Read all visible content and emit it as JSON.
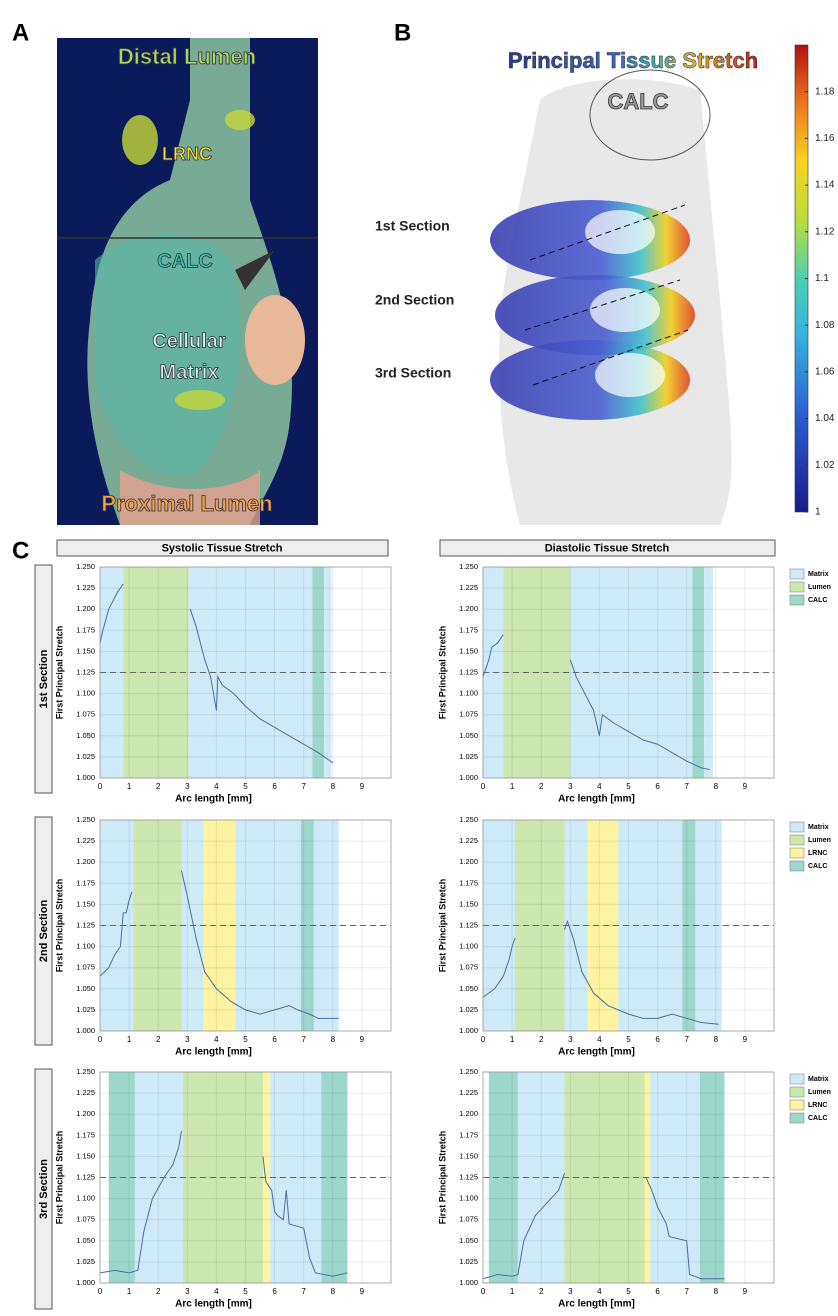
{
  "panel_labels": [
    "A",
    "B",
    "C"
  ],
  "panel_a": {
    "labels": [
      "Distal Lumen",
      "LRNC",
      "CALC",
      "Cellular",
      "Matrix",
      "Proximal Lumen"
    ]
  },
  "panel_b": {
    "title": "Principal Tissue Stretch",
    "calc_label": "CALC",
    "sections": [
      "1st Section",
      "2nd Section",
      "3rd Section"
    ],
    "colorbar": {
      "ylim": [
        1,
        1.2
      ],
      "yticks": [
        1,
        1.02,
        1.04,
        1.06,
        1.08,
        1.1,
        1.12,
        1.14,
        1.16,
        1.18
      ]
    }
  },
  "column_titles": [
    "Systolic Tissue Stretch",
    "Diastolic Tissue Stretch"
  ],
  "row_titles": [
    "1st Section",
    "2nd Section",
    "3rd Section"
  ],
  "chart_data": [
    {
      "type": "line",
      "xlabel": "Arc length [mm]",
      "ylabel": "First Principal Stretch",
      "xlim": [
        0,
        10
      ],
      "ylim": [
        1,
        1.25
      ],
      "xticks": [
        0,
        1,
        2,
        3,
        4,
        5,
        6,
        7,
        8,
        9
      ],
      "yticks": [
        {
          "value": 1,
          "label": "1.000"
        },
        1.025,
        {
          "value": 1.05,
          "label": "1.050"
        },
        1.075,
        {
          "value": 1.1,
          "label": "1.100"
        },
        1.125,
        {
          "value": 1.15,
          "label": "1.150"
        },
        1.175,
        {
          "value": 1.2,
          "label": "1.200"
        },
        1.225,
        {
          "value": 1.25,
          "label": "1.250"
        }
      ],
      "grid": true,
      "reference_line": 1.125,
      "color": "#4a6fa5",
      "regions": [
        {
          "start": 0,
          "end": 0.8,
          "color": "#cfeaf7"
        },
        {
          "start": 0.8,
          "end": 3.05,
          "color": "#cde7b0"
        },
        {
          "start": 3.05,
          "end": 7.3,
          "color": "#cfeaf7"
        },
        {
          "start": 7.3,
          "end": 7.7,
          "color": "#9dd7cc"
        },
        {
          "start": 7.7,
          "end": 7.95,
          "color": "#cfeaf7"
        }
      ],
      "x": [
        0,
        0.1,
        0.3,
        0.6,
        0.8,
        null,
        3.1,
        3.3,
        3.6,
        3.8,
        3.95,
        4.0,
        4.05,
        4.2,
        4.6,
        5,
        5.5,
        6,
        6.5,
        7,
        7.5,
        8
      ],
      "values": [
        1.16,
        1.175,
        1.2,
        1.22,
        1.23,
        null,
        1.2,
        1.18,
        1.14,
        1.12,
        1.09,
        1.08,
        1.12,
        1.11,
        1.1,
        1.085,
        1.07,
        1.06,
        1.05,
        1.04,
        1.03,
        1.018
      ]
    },
    {
      "type": "line",
      "xlabel": "Arc length [mm]",
      "ylabel": "First Principal Stretch",
      "xlim": [
        0,
        10
      ],
      "ylim": [
        1,
        1.25
      ],
      "xticks": [
        0,
        1,
        2,
        3,
        4,
        5,
        6,
        7,
        8,
        9
      ],
      "yticks": [
        {
          "value": 1,
          "label": "1.000"
        },
        1.025,
        {
          "value": 1.05,
          "label": "1.050"
        },
        1.075,
        {
          "value": 1.1,
          "label": "1.100"
        },
        1.125,
        {
          "value": 1.15,
          "label": "1.150"
        },
        1.175,
        {
          "value": 1.2,
          "label": "1.200"
        },
        1.225,
        {
          "value": 1.25,
          "label": "1.250"
        }
      ],
      "grid": true,
      "reference_line": 1.125,
      "color": "#4a6fa5",
      "regions": [
        {
          "start": 0,
          "end": 0.7,
          "color": "#cfeaf7"
        },
        {
          "start": 0.7,
          "end": 3.0,
          "color": "#cde7b0"
        },
        {
          "start": 3.0,
          "end": 7.2,
          "color": "#cfeaf7"
        },
        {
          "start": 7.2,
          "end": 7.6,
          "color": "#9dd7cc"
        },
        {
          "start": 7.6,
          "end": 7.9,
          "color": "#cfeaf7"
        }
      ],
      "legend": [
        {
          "name": "Matrix",
          "color": "#cfeaf7"
        },
        {
          "name": "Lumen",
          "color": "#cde7b0"
        },
        {
          "name": "CALC",
          "color": "#9dd7cc"
        }
      ],
      "x": [
        0,
        0.2,
        0.3,
        0.5,
        0.7,
        null,
        3.0,
        3.2,
        3.5,
        3.8,
        4.0,
        4.1,
        4.5,
        5,
        5.5,
        6,
        6.5,
        7,
        7.5,
        7.8
      ],
      "values": [
        1.12,
        1.14,
        1.155,
        1.16,
        1.17,
        null,
        1.14,
        1.12,
        1.1,
        1.08,
        1.05,
        1.075,
        1.065,
        1.055,
        1.045,
        1.04,
        1.03,
        1.02,
        1.012,
        1.01
      ]
    },
    {
      "type": "line",
      "xlabel": "Arc length [mm]",
      "ylabel": "First Principal Stretch",
      "xlim": [
        0,
        10
      ],
      "ylim": [
        1,
        1.25
      ],
      "xticks": [
        0,
        1,
        2,
        3,
        4,
        5,
        6,
        7,
        8,
        9
      ],
      "yticks": [
        {
          "value": 1,
          "label": "1.000"
        },
        1.025,
        {
          "value": 1.05,
          "label": "1.050"
        },
        1.075,
        {
          "value": 1.1,
          "label": "1.100"
        },
        1.125,
        {
          "value": 1.15,
          "label": "1.150"
        },
        1.175,
        {
          "value": 1.2,
          "label": "1.200"
        },
        1.225,
        {
          "value": 1.25,
          "label": "1.250"
        }
      ],
      "grid": true,
      "reference_line": 1.125,
      "color": "#4a6fa5",
      "regions": [
        {
          "start": 0,
          "end": 1.15,
          "color": "#cfeaf7"
        },
        {
          "start": 1.15,
          "end": 2.8,
          "color": "#cde7b0"
        },
        {
          "start": 2.8,
          "end": 3.55,
          "color": "#cfeaf7"
        },
        {
          "start": 3.55,
          "end": 4.65,
          "color": "#fbf3a0"
        },
        {
          "start": 4.65,
          "end": 6.9,
          "color": "#cfeaf7"
        },
        {
          "start": 6.9,
          "end": 7.35,
          "color": "#9dd7cc"
        },
        {
          "start": 7.35,
          "end": 8.2,
          "color": "#cfeaf7"
        }
      ],
      "x": [
        0,
        0.3,
        0.5,
        0.7,
        0.8,
        0.9,
        1.0,
        1.1,
        null,
        2.8,
        3.0,
        3.3,
        3.6,
        4,
        4.5,
        5,
        5.5,
        6,
        6.5,
        6.8,
        7.2,
        7.5,
        8.2
      ],
      "values": [
        1.065,
        1.075,
        1.09,
        1.1,
        1.14,
        1.14,
        1.155,
        1.165,
        null,
        1.19,
        1.16,
        1.11,
        1.07,
        1.05,
        1.035,
        1.025,
        1.02,
        1.025,
        1.03,
        1.025,
        1.02,
        1.015,
        1.015
      ]
    },
    {
      "type": "line",
      "xlabel": "Arc length [mm]",
      "ylabel": "First Principal Stretch",
      "xlim": [
        0,
        10
      ],
      "ylim": [
        1,
        1.25
      ],
      "xticks": [
        0,
        1,
        2,
        3,
        4,
        5,
        6,
        7,
        8,
        9
      ],
      "yticks": [
        {
          "value": 1,
          "label": "1.000"
        },
        1.025,
        {
          "value": 1.05,
          "label": "1.050"
        },
        1.075,
        {
          "value": 1.1,
          "label": "1.100"
        },
        1.125,
        {
          "value": 1.15,
          "label": "1.150"
        },
        1.175,
        {
          "value": 1.2,
          "label": "1.200"
        },
        1.225,
        {
          "value": 1.25,
          "label": "1.250"
        }
      ],
      "grid": true,
      "reference_line": 1.125,
      "color": "#4a6fa5",
      "regions": [
        {
          "start": 0,
          "end": 1.1,
          "color": "#cfeaf7"
        },
        {
          "start": 1.1,
          "end": 2.8,
          "color": "#cde7b0"
        },
        {
          "start": 2.8,
          "end": 3.6,
          "color": "#cfeaf7"
        },
        {
          "start": 3.6,
          "end": 4.65,
          "color": "#fbf3a0"
        },
        {
          "start": 4.65,
          "end": 6.85,
          "color": "#cfeaf7"
        },
        {
          "start": 6.85,
          "end": 7.3,
          "color": "#9dd7cc"
        },
        {
          "start": 7.3,
          "end": 8.2,
          "color": "#cfeaf7"
        }
      ],
      "legend": [
        {
          "name": "Matrix",
          "color": "#cfeaf7"
        },
        {
          "name": "Lumen",
          "color": "#cde7b0"
        },
        {
          "name": "LRNC",
          "color": "#fbf3a0"
        },
        {
          "name": "CALC",
          "color": "#9dd7cc"
        }
      ],
      "x": [
        0,
        0.4,
        0.7,
        0.9,
        1.0,
        1.1,
        null,
        2.8,
        2.9,
        3.1,
        3.4,
        3.8,
        4.3,
        5,
        5.5,
        6,
        6.5,
        7,
        7.5,
        8.1
      ],
      "values": [
        1.04,
        1.05,
        1.065,
        1.085,
        1.1,
        1.11,
        null,
        1.12,
        1.13,
        1.11,
        1.07,
        1.045,
        1.03,
        1.02,
        1.015,
        1.015,
        1.02,
        1.015,
        1.01,
        1.008
      ]
    },
    {
      "type": "line",
      "xlabel": "Arc length [mm]",
      "ylabel": "First Principal Stretch",
      "xlim": [
        0,
        10
      ],
      "ylim": [
        1,
        1.25
      ],
      "xticks": [
        0,
        1,
        2,
        3,
        4,
        5,
        6,
        7,
        8,
        9
      ],
      "yticks": [
        {
          "value": 1,
          "label": "1.000"
        },
        1.025,
        {
          "value": 1.05,
          "label": "1.050"
        },
        1.075,
        {
          "value": 1.1,
          "label": "1.100"
        },
        1.125,
        {
          "value": 1.15,
          "label": "1.150"
        },
        1.175,
        {
          "value": 1.2,
          "label": "1.200"
        },
        1.225,
        {
          "value": 1.25,
          "label": "1.250"
        }
      ],
      "grid": true,
      "reference_line": 1.125,
      "color": "#4a6fa5",
      "regions": [
        {
          "start": 0.3,
          "end": 1.2,
          "color": "#9dd7cc"
        },
        {
          "start": 1.2,
          "end": 2.85,
          "color": "#cfeaf7"
        },
        {
          "start": 2.85,
          "end": 5.6,
          "color": "#cde7b0"
        },
        {
          "start": 5.6,
          "end": 5.85,
          "color": "#fbf3a0"
        },
        {
          "start": 5.85,
          "end": 7.6,
          "color": "#cfeaf7"
        },
        {
          "start": 7.6,
          "end": 8.5,
          "color": "#9dd7cc"
        }
      ],
      "x": [
        0,
        0.5,
        1.0,
        1.3,
        1.5,
        1.8,
        2.2,
        2.5,
        2.7,
        2.8,
        null,
        5.6,
        5.7,
        5.9,
        6.0,
        6.1,
        6.3,
        6.4,
        6.5,
        7.0,
        7.2,
        7.4,
        8,
        8.5
      ],
      "values": [
        1.012,
        1.015,
        1.012,
        1.015,
        1.06,
        1.1,
        1.125,
        1.14,
        1.16,
        1.18,
        null,
        1.15,
        1.12,
        1.11,
        1.085,
        1.08,
        1.075,
        1.11,
        1.07,
        1.065,
        1.03,
        1.012,
        1.008,
        1.012
      ]
    },
    {
      "type": "line",
      "xlabel": "Arc length [mm]",
      "ylabel": "First Principal Stretch",
      "xlim": [
        0,
        10
      ],
      "ylim": [
        1,
        1.25
      ],
      "xticks": [
        0,
        1,
        2,
        3,
        4,
        5,
        6,
        7,
        8,
        9
      ],
      "yticks": [
        {
          "value": 1,
          "label": "1.000"
        },
        1.025,
        {
          "value": 1.05,
          "label": "1.050"
        },
        1.075,
        {
          "value": 1.1,
          "label": "1.100"
        },
        1.125,
        {
          "value": 1.15,
          "label": "1.150"
        },
        1.175,
        {
          "value": 1.2,
          "label": "1.200"
        },
        1.225,
        {
          "value": 1.25,
          "label": "1.250"
        }
      ],
      "grid": true,
      "reference_line": 1.125,
      "color": "#4a6fa5",
      "regions": [
        {
          "start": 0.2,
          "end": 1.2,
          "color": "#9dd7cc"
        },
        {
          "start": 1.2,
          "end": 2.8,
          "color": "#cfeaf7"
        },
        {
          "start": 2.8,
          "end": 5.55,
          "color": "#cde7b0"
        },
        {
          "start": 5.55,
          "end": 5.75,
          "color": "#fbf3a0"
        },
        {
          "start": 5.75,
          "end": 7.45,
          "color": "#cfeaf7"
        },
        {
          "start": 7.45,
          "end": 8.3,
          "color": "#9dd7cc"
        }
      ],
      "legend": [
        {
          "name": "Matrix",
          "color": "#cfeaf7"
        },
        {
          "name": "Lumen",
          "color": "#cde7b0"
        },
        {
          "name": "LRNC",
          "color": "#fbf3a0"
        },
        {
          "name": "CALC",
          "color": "#9dd7cc"
        }
      ],
      "x": [
        0,
        0.5,
        1,
        1.2,
        1.4,
        1.8,
        2.2,
        2.6,
        2.8,
        null,
        5.6,
        5.8,
        6.0,
        6.3,
        6.4,
        7.0,
        7.1,
        7.5,
        8.3
      ],
      "values": [
        1.005,
        1.01,
        1.008,
        1.01,
        1.05,
        1.08,
        1.095,
        1.11,
        1.13,
        null,
        1.125,
        1.11,
        1.09,
        1.07,
        1.055,
        1.05,
        1.01,
        1.005,
        1.005
      ]
    }
  ]
}
